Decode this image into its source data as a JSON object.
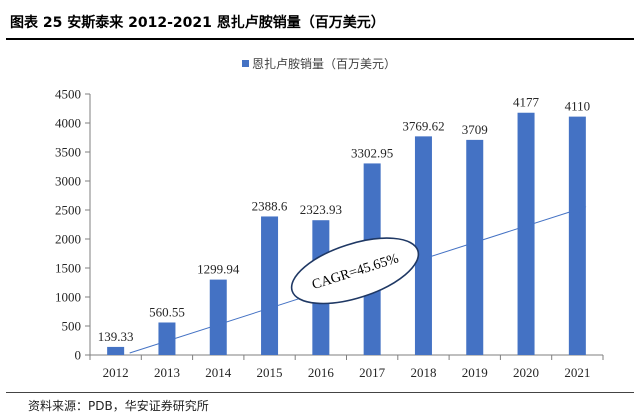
{
  "figure": {
    "title": "图表 25 安斯泰来 2012-2021 恩扎卢胺销量（百万美元）",
    "source": "资料来源：PDB，华安证券研究所"
  },
  "colors": {
    "bar": "#4472c4",
    "trend": "#4472c4",
    "axis": "#7f7f7f",
    "text": "#262626"
  },
  "chart_data": {
    "type": "bar",
    "title": "",
    "categories": [
      "2012",
      "2013",
      "2014",
      "2015",
      "2016",
      "2017",
      "2018",
      "2019",
      "2020",
      "2021"
    ],
    "series": [
      {
        "name": "恩扎卢胺销量（百万美元）",
        "values": [
          139.33,
          560.55,
          1299.94,
          2388.6,
          2323.93,
          3302.95,
          3769.62,
          3709,
          4177,
          4110
        ]
      }
    ],
    "data_labels": [
      "139.33",
      "560.55",
      "1299.94",
      "2388.6",
      "2323.93",
      "3302.95",
      "3769.62",
      "3709",
      "4177",
      "4110"
    ],
    "ylim": [
      0,
      4500
    ],
    "yticks": [
      0,
      500,
      1000,
      1500,
      2000,
      2500,
      3000,
      3500,
      4000,
      4500
    ],
    "xlabel": "",
    "ylabel": "",
    "legend_position": "top-center",
    "grid": false,
    "annotation": {
      "text": "CAGR=45.65%",
      "kind": "trend-arrow-with-ellipse"
    }
  }
}
